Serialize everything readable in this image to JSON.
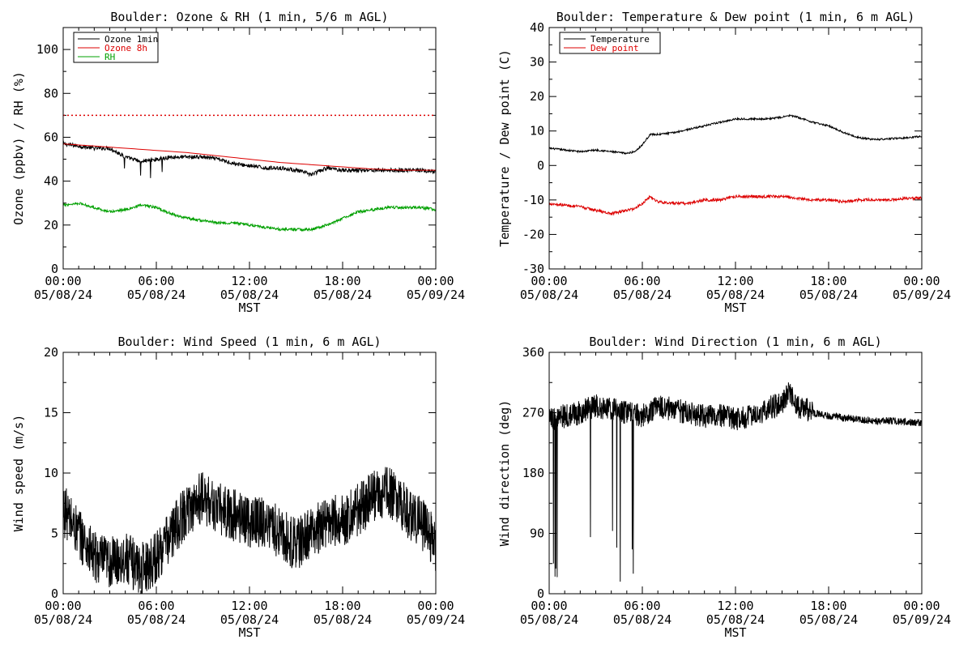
{
  "colors": {
    "black": "#000000",
    "red": "#dd0000",
    "green": "#00a000",
    "background": "#ffffff"
  },
  "chart_data": [
    {
      "type": "line",
      "title": "Boulder: Ozone & RH (1 min, 5/6 m AGL)",
      "xlabel": "MST",
      "ylabel": "Ozone (ppbv) / RH (%)",
      "xlim": [
        "05/08/24 00:00",
        "05/09/24 00:00"
      ],
      "xticks": [
        {
          "time": "00:00",
          "date": "05/08/24"
        },
        {
          "time": "06:00",
          "date": "05/08/24"
        },
        {
          "time": "12:00",
          "date": "05/08/24"
        },
        {
          "time": "18:00",
          "date": "05/08/24"
        },
        {
          "time": "00:00",
          "date": "05/09/24"
        }
      ],
      "ylim": [
        0,
        110
      ],
      "yticks": [
        0,
        20,
        40,
        60,
        80,
        100
      ],
      "grid": false,
      "legend": "top-left",
      "reference_line": {
        "y": 70,
        "style": "dotted",
        "color": "#dd0000"
      },
      "series": [
        {
          "name": "Ozone 1min",
          "color": "#000000",
          "x": [
            0,
            1,
            2,
            3,
            4,
            5,
            6,
            7,
            8,
            9,
            10,
            11,
            12,
            13,
            14,
            15,
            16,
            17,
            18,
            19,
            20,
            21,
            22,
            23,
            24
          ],
          "y": [
            57,
            56,
            55,
            55,
            51,
            49,
            50,
            51,
            51,
            51,
            50,
            48,
            47,
            46,
            46,
            45,
            43,
            46,
            45,
            45,
            45,
            45,
            45,
            45,
            44
          ]
        },
        {
          "name": "Ozone 8h",
          "color": "#dd0000",
          "x": [
            0,
            2,
            4,
            6,
            8,
            10,
            12,
            14,
            16,
            18,
            20,
            22,
            24
          ],
          "y": [
            57,
            56,
            55,
            54,
            53,
            51.5,
            50,
            48.5,
            47.5,
            46.5,
            45.5,
            45,
            45
          ]
        },
        {
          "name": "RH",
          "color": "#00a000",
          "x": [
            0,
            1,
            2,
            3,
            4,
            5,
            6,
            7,
            8,
            9,
            10,
            11,
            12,
            13,
            14,
            15,
            16,
            17,
            18,
            19,
            20,
            21,
            22,
            23,
            24
          ],
          "y": [
            29,
            30,
            28,
            26,
            27,
            29,
            28,
            25,
            23,
            22,
            21,
            21,
            20,
            19,
            18,
            18,
            18,
            20,
            23,
            26,
            27,
            28,
            28,
            28,
            27
          ]
        }
      ]
    },
    {
      "type": "line",
      "title": "Boulder: Temperature & Dew point (1 min, 6 m AGL)",
      "xlabel": "MST",
      "ylabel": "Temperature / Dew point (C)",
      "xlim": [
        "05/08/24 00:00",
        "05/09/24 00:00"
      ],
      "xticks": [
        {
          "time": "00:00",
          "date": "05/08/24"
        },
        {
          "time": "06:00",
          "date": "05/08/24"
        },
        {
          "time": "12:00",
          "date": "05/08/24"
        },
        {
          "time": "18:00",
          "date": "05/08/24"
        },
        {
          "time": "00:00",
          "date": "05/09/24"
        }
      ],
      "ylim": [
        -30,
        40
      ],
      "yticks": [
        -30,
        -20,
        -10,
        0,
        10,
        20,
        30,
        40
      ],
      "grid": false,
      "legend": "top-left",
      "series": [
        {
          "name": "Temperature",
          "color": "#000000",
          "x": [
            0,
            1,
            2,
            3,
            4,
            5,
            5.5,
            6,
            6.5,
            7,
            8,
            9,
            10,
            11,
            12,
            13,
            14,
            15,
            15.5,
            16,
            17,
            18,
            19,
            20,
            21,
            22,
            23,
            24
          ],
          "y": [
            5,
            4.5,
            4,
            4.5,
            4,
            3.5,
            4,
            6,
            9,
            9,
            9.5,
            10.5,
            11.5,
            12.5,
            13.5,
            13.5,
            13.5,
            14,
            14.5,
            14,
            12.5,
            11.5,
            9.5,
            8,
            7.5,
            7.8,
            8,
            8.5
          ]
        },
        {
          "name": "Dew point",
          "color": "#dd0000",
          "x": [
            0,
            1,
            2,
            3,
            4,
            5,
            5.5,
            6,
            6.5,
            7,
            8,
            9,
            10,
            11,
            12,
            13,
            14,
            15,
            16,
            17,
            18,
            19,
            20,
            21,
            22,
            23,
            24
          ],
          "y": [
            -11,
            -11.5,
            -12,
            -13,
            -14,
            -13,
            -12.5,
            -11,
            -9,
            -10.5,
            -11,
            -11,
            -10,
            -10,
            -9,
            -9,
            -9,
            -9,
            -9.5,
            -10,
            -10,
            -10.5,
            -10,
            -10,
            -10,
            -9.5,
            -9.5
          ]
        }
      ]
    },
    {
      "type": "line",
      "title": "Boulder: Wind Speed (1 min, 6 m AGL)",
      "xlabel": "MST",
      "ylabel": "Wind speed (m/s)",
      "xlim": [
        "05/08/24 00:00",
        "05/09/24 00:00"
      ],
      "xticks": [
        {
          "time": "00:00",
          "date": "05/08/24"
        },
        {
          "time": "06:00",
          "date": "05/08/24"
        },
        {
          "time": "12:00",
          "date": "05/08/24"
        },
        {
          "time": "18:00",
          "date": "05/08/24"
        },
        {
          "time": "00:00",
          "date": "05/09/24"
        }
      ],
      "ylim": [
        0,
        20
      ],
      "yticks": [
        0,
        5,
        10,
        15,
        20
      ],
      "grid": false,
      "series": [
        {
          "name": "",
          "color": "#000000",
          "x": [
            0,
            1,
            2,
            3,
            4,
            5,
            6,
            7,
            8,
            9,
            10,
            11,
            12,
            13,
            14,
            15,
            16,
            17,
            18,
            19,
            20,
            21,
            22,
            23,
            24
          ],
          "y": [
            7,
            5,
            3,
            2.5,
            3,
            2,
            3,
            5,
            7,
            8,
            7,
            6.5,
            6,
            6,
            5,
            4,
            5,
            6,
            6,
            7,
            8,
            8.5,
            7,
            6,
            4
          ]
        }
      ]
    },
    {
      "type": "line",
      "title": "Boulder: Wind Direction (1 min, 6 m AGL)",
      "xlabel": "MST",
      "ylabel": "Wind direction (deg)",
      "xlim": [
        "05/08/24 00:00",
        "05/09/24 00:00"
      ],
      "xticks": [
        {
          "time": "00:00",
          "date": "05/08/24"
        },
        {
          "time": "06:00",
          "date": "05/08/24"
        },
        {
          "time": "12:00",
          "date": "05/08/24"
        },
        {
          "time": "18:00",
          "date": "05/08/24"
        },
        {
          "time": "00:00",
          "date": "05/09/24"
        }
      ],
      "ylim": [
        0,
        360
      ],
      "yticks": [
        0,
        90,
        180,
        270,
        360
      ],
      "grid": false,
      "series": [
        {
          "name": "",
          "color": "#000000",
          "x": [
            0,
            1,
            2,
            3,
            4,
            5,
            6,
            7,
            8,
            9,
            10,
            11,
            12,
            13,
            14,
            15,
            15.5,
            16,
            17,
            18,
            19,
            20,
            21,
            22,
            23,
            24
          ],
          "y": [
            260,
            265,
            270,
            280,
            275,
            270,
            265,
            280,
            275,
            270,
            265,
            265,
            260,
            265,
            275,
            285,
            300,
            280,
            270,
            265,
            262,
            260,
            258,
            258,
            256,
            255
          ]
        }
      ]
    }
  ]
}
